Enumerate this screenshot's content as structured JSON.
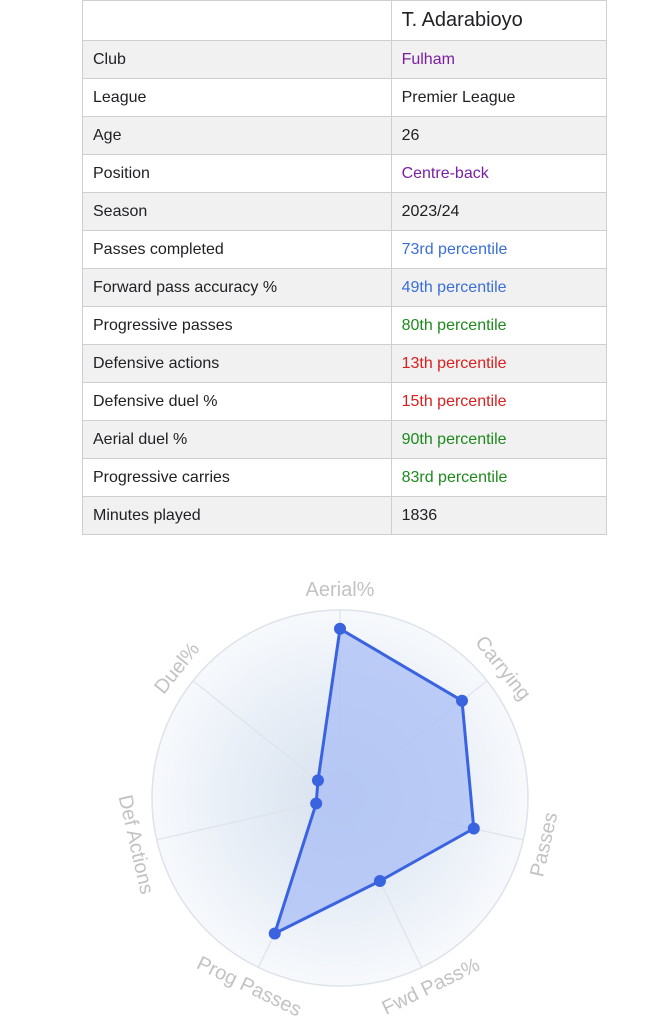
{
  "player": {
    "name": "T. Adarabioyo"
  },
  "rows": [
    {
      "label": "Club",
      "value": "Fulham",
      "color": "#7b1fa2"
    },
    {
      "label": "League",
      "value": "Premier League",
      "color": "#202124"
    },
    {
      "label": "Age",
      "value": "26",
      "color": "#202124"
    },
    {
      "label": "Position",
      "value": "Centre-back",
      "color": "#7b1fa2"
    },
    {
      "label": "Season",
      "value": "2023/24",
      "color": "#202124"
    },
    {
      "label": "Passes completed",
      "value": "73rd percentile",
      "color": "#3a6fd8"
    },
    {
      "label": "Forward pass accuracy %",
      "value": "49th percentile",
      "color": "#3a6fd8"
    },
    {
      "label": "Progressive passes",
      "value": "80th percentile",
      "color": "#1e8a1e"
    },
    {
      "label": "Defensive actions",
      "value": "13th percentile",
      "color": "#d91f1f"
    },
    {
      "label": "Defensive duel %",
      "value": "15th percentile",
      "color": "#d91f1f"
    },
    {
      "label": "Aerial duel %",
      "value": "90th percentile",
      "color": "#1e8a1e"
    },
    {
      "label": "Progressive carries",
      "value": "83rd percentile",
      "color": "#1e8a1e"
    },
    {
      "label": "Minutes played",
      "value": "1836",
      "color": "#202124"
    }
  ],
  "chart_data": {
    "type": "radar",
    "axes": [
      "Aerial%",
      "Carrying",
      "Passes",
      "Fwd Pass%",
      "Prog Passes",
      "Def Actions",
      "Duel%"
    ],
    "values": [
      90,
      83,
      73,
      49,
      80,
      13,
      15
    ],
    "range": [
      0,
      100
    ],
    "colors": {
      "line": "#3a63e0",
      "fill": "#a9bdf5",
      "grid": "#dde3ea",
      "label": "#c2c2c2"
    }
  }
}
